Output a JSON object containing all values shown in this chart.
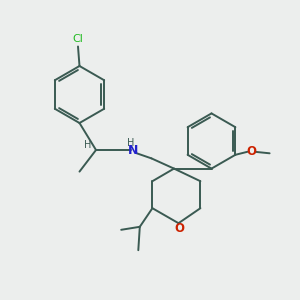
{
  "background_color": "#eceeed",
  "bond_color": "#3a5a52",
  "cl_color": "#22bb22",
  "n_color": "#2222cc",
  "o_color": "#cc2200",
  "figsize": [
    3.0,
    3.0
  ],
  "dpi": 100,
  "lw": 1.4,
  "xlim": [
    0,
    10
  ],
  "ylim": [
    0,
    10
  ]
}
